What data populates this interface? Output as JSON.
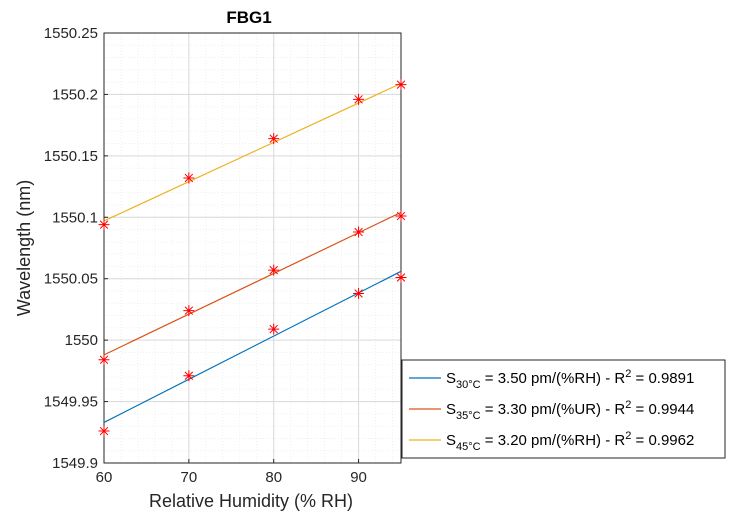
{
  "chart_data": {
    "type": "scatter",
    "title": "FBG1",
    "xlabel": "Relative Humidity (% RH)",
    "ylabel": "Wavelength (nm)",
    "xlim": [
      60,
      95
    ],
    "ylim": [
      1549.9,
      1550.25
    ],
    "x_ticks": [
      "60",
      "70",
      "80",
      "90"
    ],
    "y_ticks": [
      "1549.9",
      "1549.95",
      "1550",
      "1550.05",
      "1550.1",
      "1550.15",
      "1550.2",
      "1550.25"
    ],
    "grid": "major and minor",
    "legend_position": "outside-right-bottom",
    "marker": "asterisk",
    "marker_color": "#ff0000",
    "series": [
      {
        "sensitivity_symbol": "S",
        "temperature": "30°C",
        "sensitivity_text": " = 3.50 pm/(%RH) - R",
        "r2_superscript": "2",
        "r2_text": " = 0.9891",
        "color": "#0072bd",
        "x": [
          60,
          70,
          80,
          90,
          95
        ],
        "y": [
          1549.926,
          1549.971,
          1550.009,
          1550.038,
          1550.051
        ],
        "fit": {
          "x": [
            60,
            95
          ],
          "y": [
            1549.933,
            1550.056
          ]
        }
      },
      {
        "sensitivity_symbol": "S",
        "temperature": "35°C",
        "sensitivity_text": " = 3.30 pm/(%UR) - R",
        "r2_superscript": "2",
        "r2_text": " = 0.9944",
        "color": "#d95319",
        "x": [
          60,
          70,
          80,
          90,
          95
        ],
        "y": [
          1549.984,
          1550.024,
          1550.057,
          1550.088,
          1550.101
        ],
        "fit": {
          "x": [
            60,
            95
          ],
          "y": [
            1549.988,
            1550.104
          ]
        }
      },
      {
        "sensitivity_symbol": "S",
        "temperature": "45°C",
        "sensitivity_text": " = 3.20 pm/(%RH) - R",
        "r2_superscript": "2",
        "r2_text": " = 0.9962",
        "color": "#edb120",
        "x": [
          60,
          70,
          80,
          90,
          95
        ],
        "y": [
          1550.094,
          1550.132,
          1550.164,
          1550.196,
          1550.208
        ],
        "fit": {
          "x": [
            60,
            95
          ],
          "y": [
            1550.097,
            1550.209
          ]
        }
      }
    ]
  }
}
